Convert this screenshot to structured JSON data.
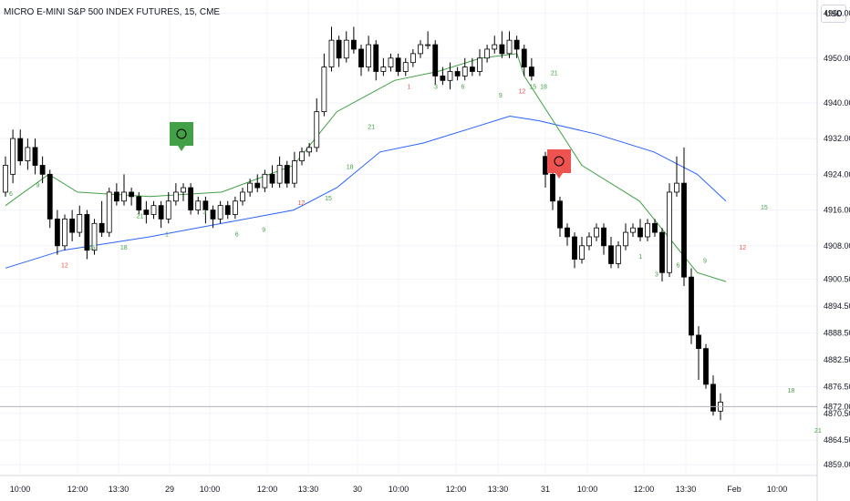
{
  "chart_data": {
    "type": "candlestick",
    "title": "MICRO E-MINI S&P 500 INDEX FUTURES, 15, CME",
    "currency": "USD",
    "colors": {
      "up_body": "#ffffff",
      "down_body": "#000000",
      "wick": "#000000",
      "marker_buy": "#43a047",
      "marker_sell": "#ef5350",
      "trail_line": "#2962ff",
      "ma_up": "#43a047",
      "ma_mid": "#ff9800",
      "ma_down": "#ef5350",
      "count_green": "#43a047",
      "count_red": "#ef5350"
    },
    "y_axis": {
      "labels": [
        "4960.00",
        "4950.00",
        "4940.00",
        "4932.00",
        "4924.00",
        "4916.00",
        "4908.00",
        "4900.50",
        "4894.50",
        "4888.50",
        "4882.50",
        "4876.50",
        "4872.00",
        "4870.50",
        "4864.50",
        "4859.00"
      ],
      "ylim": [
        4857,
        4963
      ]
    },
    "x_axis": {
      "labels": [
        "10:00",
        "12:00",
        "13:30",
        "29",
        "10:00",
        "12:00",
        "13:30",
        "30",
        "10:00",
        "12:00",
        "13:30",
        "31",
        "10:00",
        "12:00",
        "13:30",
        "Feb",
        "10:00"
      ]
    },
    "last_price": 4872.0,
    "candles": [
      [
        4920,
        4926,
        4919,
        4928
      ],
      [
        4924,
        4932,
        4922,
        4934
      ],
      [
        4932,
        4927,
        4926,
        4934
      ],
      [
        4927,
        4930,
        4925,
        4932
      ],
      [
        4930,
        4926,
        4924,
        4932
      ],
      [
        4926,
        4924,
        4922,
        4928
      ],
      [
        4924,
        4914,
        4912,
        4925
      ],
      [
        4914,
        4908,
        4906,
        4916
      ],
      [
        4908,
        4914,
        4907,
        4915
      ],
      [
        4914,
        4911,
        4909,
        4916
      ],
      [
        4911,
        4915,
        4910,
        4917
      ],
      [
        4915,
        4907,
        4905,
        4916
      ],
      [
        4907,
        4913,
        4906,
        4914
      ],
      [
        4913,
        4911,
        4910,
        4918
      ],
      [
        4911,
        4920,
        4910,
        4921
      ],
      [
        4920,
        4918,
        4917,
        4922
      ],
      [
        4918,
        4920,
        4917,
        4924
      ],
      [
        4920,
        4919,
        4917,
        4921
      ],
      [
        4919,
        4916,
        4915,
        4920
      ],
      [
        4916,
        4915,
        4913,
        4918
      ],
      [
        4915,
        4917,
        4914,
        4918
      ],
      [
        4917,
        4914,
        4912,
        4918
      ],
      [
        4914,
        4918,
        4913,
        4920
      ],
      [
        4918,
        4920,
        4917,
        4922
      ],
      [
        4920,
        4921,
        4918,
        4922
      ],
      [
        4921,
        4916,
        4915,
        4922
      ],
      [
        4916,
        4918,
        4915,
        4919
      ],
      [
        4918,
        4916,
        4913,
        4919
      ],
      [
        4916,
        4914,
        4912,
        4917
      ],
      [
        4914,
        4917,
        4913,
        4918
      ],
      [
        4917,
        4915,
        4914,
        4918
      ],
      [
        4915,
        4918,
        4914,
        4919
      ],
      [
        4918,
        4920,
        4917,
        4921
      ],
      [
        4920,
        4922,
        4919,
        4923
      ],
      [
        4922,
        4921,
        4920,
        4924
      ],
      [
        4921,
        4924,
        4920,
        4925
      ],
      [
        4924,
        4922,
        4921,
        4926
      ],
      [
        4922,
        4926,
        4921,
        4928
      ],
      [
        4926,
        4922,
        4921,
        4927
      ],
      [
        4922,
        4927,
        4921,
        4929
      ],
      [
        4927,
        4929,
        4926,
        4930
      ],
      [
        4929,
        4930,
        4928,
        4931
      ],
      [
        4930,
        4938,
        4929,
        4941
      ],
      [
        4938,
        4948,
        4937,
        4951
      ],
      [
        4948,
        4954,
        4947,
        4957
      ],
      [
        4954,
        4950,
        4948,
        4955
      ],
      [
        4950,
        4954,
        4949,
        4956
      ],
      [
        4954,
        4952,
        4951,
        4957
      ],
      [
        4952,
        4948,
        4946,
        4953
      ],
      [
        4948,
        4953,
        4947,
        4955
      ],
      [
        4953,
        4947,
        4945,
        4954
      ],
      [
        4947,
        4948,
        4946,
        4950
      ],
      [
        4948,
        4950,
        4947,
        4951
      ],
      [
        4950,
        4947,
        4946,
        4951
      ],
      [
        4947,
        4949,
        4946,
        4950
      ],
      [
        4949,
        4951,
        4948,
        4952
      ],
      [
        4951,
        4953,
        4950,
        4954
      ],
      [
        4953,
        4953,
        4952,
        4956
      ],
      [
        4953,
        4946,
        4944,
        4954
      ],
      [
        4946,
        4945,
        4944,
        4948
      ],
      [
        4945,
        4947,
        4943,
        4949
      ],
      [
        4947,
        4946,
        4945,
        4948
      ],
      [
        4946,
        4948,
        4945,
        4950
      ],
      [
        4948,
        4947,
        4946,
        4950
      ],
      [
        4947,
        4950,
        4946,
        4952
      ],
      [
        4950,
        4952,
        4949,
        4953
      ],
      [
        4952,
        4953,
        4951,
        4955
      ],
      [
        4953,
        4951,
        4950,
        4956
      ],
      [
        4951,
        4954,
        4950,
        4956
      ],
      [
        4954,
        4952,
        4950,
        4955
      ],
      [
        4952,
        4948,
        4946,
        4953
      ],
      [
        4948,
        4946,
        4945,
        4950
      ],
      [
        4928,
        4924,
        4921,
        4929
      ],
      [
        4924,
        4918,
        4916,
        4926
      ],
      [
        4918,
        4912,
        4910,
        4919
      ],
      [
        4912,
        4910,
        4908,
        4913
      ],
      [
        4910,
        4905,
        4903,
        4911
      ],
      [
        4905,
        4908,
        4904,
        4910
      ],
      [
        4908,
        4910,
        4907,
        4911
      ],
      [
        4910,
        4912,
        4909,
        4913
      ],
      [
        4912,
        4908,
        4906,
        4913
      ],
      [
        4908,
        4904,
        4903,
        4910
      ],
      [
        4904,
        4908,
        4903,
        4909
      ],
      [
        4908,
        4911,
        4907,
        4913
      ],
      [
        4911,
        4912,
        4910,
        4913
      ],
      [
        4912,
        4910,
        4909,
        4914
      ],
      [
        4910,
        4913,
        4909,
        4914
      ],
      [
        4913,
        4911,
        4910,
        4914
      ],
      [
        4911,
        4902,
        4900,
        4912
      ],
      [
        4902,
        4920,
        4901,
        4922
      ],
      [
        4920,
        4922,
        4919,
        4928
      ],
      [
        4922,
        4901,
        4899,
        4930
      ],
      [
        4901,
        4888,
        4886,
        4903
      ],
      [
        4888,
        4885,
        4878,
        4890
      ],
      [
        4885,
        4877,
        4876,
        4886
      ],
      [
        4877,
        4871,
        4870,
        4879
      ],
      [
        4871,
        4873,
        4869,
        4875
      ]
    ],
    "trail_points": [
      [
        0,
        4903
      ],
      [
        8,
        4907
      ],
      [
        20,
        4910
      ],
      [
        30,
        4913
      ],
      [
        40,
        4916
      ],
      [
        46,
        4921
      ],
      [
        52,
        4929
      ],
      [
        58,
        4931
      ],
      [
        64,
        4934
      ],
      [
        70,
        4937
      ],
      [
        74,
        4936
      ],
      [
        82,
        4933
      ],
      [
        90,
        4929
      ],
      [
        96,
        4924
      ],
      [
        100,
        4918
      ]
    ],
    "ma_points": [
      [
        0,
        4917
      ],
      [
        6,
        4924
      ],
      [
        10,
        4920
      ],
      [
        20,
        4919
      ],
      [
        30,
        4920
      ],
      [
        40,
        4926
      ],
      [
        46,
        4938
      ],
      [
        54,
        4945
      ],
      [
        60,
        4947
      ],
      [
        66,
        4950
      ],
      [
        71,
        4951
      ],
      [
        72,
        4946
      ],
      [
        80,
        4926
      ],
      [
        88,
        4918
      ],
      [
        92,
        4910
      ],
      [
        96,
        4902
      ],
      [
        100,
        4900
      ]
    ],
    "count_labels": [
      [
        1,
        "6",
        "g"
      ],
      [
        6,
        "9",
        "g"
      ],
      [
        11,
        "12",
        "r"
      ],
      [
        16,
        "15",
        "g"
      ],
      [
        22,
        "18",
        "g"
      ],
      [
        25,
        "21",
        "g"
      ],
      [
        30,
        "1",
        "g"
      ],
      [
        37,
        "3",
        "g"
      ],
      [
        43,
        "6",
        "g"
      ],
      [
        48,
        "9",
        "g"
      ],
      [
        55,
        "12",
        "r"
      ],
      [
        60,
        "15",
        "g"
      ],
      [
        64,
        "18",
        "g"
      ],
      [
        68,
        "21",
        "g"
      ],
      [
        75,
        "1",
        "r"
      ],
      [
        80,
        "3",
        "g"
      ],
      [
        85,
        "6",
        "g"
      ],
      [
        92,
        "9",
        "g"
      ],
      [
        96,
        "12",
        "r"
      ],
      [
        98,
        "15",
        "g"
      ],
      [
        100,
        "18",
        "g"
      ],
      [
        102,
        "21",
        "g"
      ],
      [
        118,
        "1",
        "g"
      ],
      [
        121,
        "3",
        "g"
      ],
      [
        125,
        "6",
        "g"
      ],
      [
        130,
        "9",
        "g"
      ],
      [
        137,
        "12",
        "r"
      ],
      [
        141,
        "15",
        "g"
      ],
      [
        146,
        "18",
        "g"
      ],
      [
        151,
        "21",
        "g"
      ]
    ],
    "markers": [
      {
        "type": "buy",
        "label": "0"
      },
      {
        "type": "sell",
        "label": "0"
      }
    ]
  }
}
